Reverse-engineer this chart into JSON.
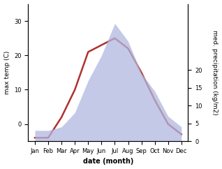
{
  "months": [
    "Jan",
    "Feb",
    "Mar",
    "Apr",
    "May",
    "Jun",
    "Jul",
    "Aug",
    "Sep",
    "Oct",
    "Nov",
    "Dec"
  ],
  "month_positions": [
    1,
    2,
    3,
    4,
    5,
    6,
    7,
    8,
    9,
    10,
    11,
    12
  ],
  "temperature": [
    -4,
    -4,
    2,
    10,
    21,
    23,
    25,
    22,
    15,
    7,
    0,
    -3
  ],
  "precipitation": [
    3,
    3,
    4,
    8,
    17,
    24,
    33,
    28,
    19,
    14,
    7,
    4
  ],
  "temp_color": "#b03030",
  "precip_fill_color": "#b0b8e0",
  "precip_fill_alpha": 0.75,
  "xlabel": "date (month)",
  "ylabel_left": "max temp (C)",
  "ylabel_right": "med. precipitation (kg/m2)",
  "ylim_left": [
    -5,
    35
  ],
  "ylim_right": [
    0,
    24
  ],
  "precip_axis_max": 24,
  "precip_data_max": 33,
  "background_color": "#ffffff",
  "temp_linewidth": 1.8,
  "left_yticks": [
    0,
    10,
    20,
    30
  ],
  "right_yticks": [
    0,
    5,
    10,
    15,
    20
  ],
  "tick_fontsize": 6,
  "label_fontsize": 7,
  "xlabel_fontweight": "bold"
}
